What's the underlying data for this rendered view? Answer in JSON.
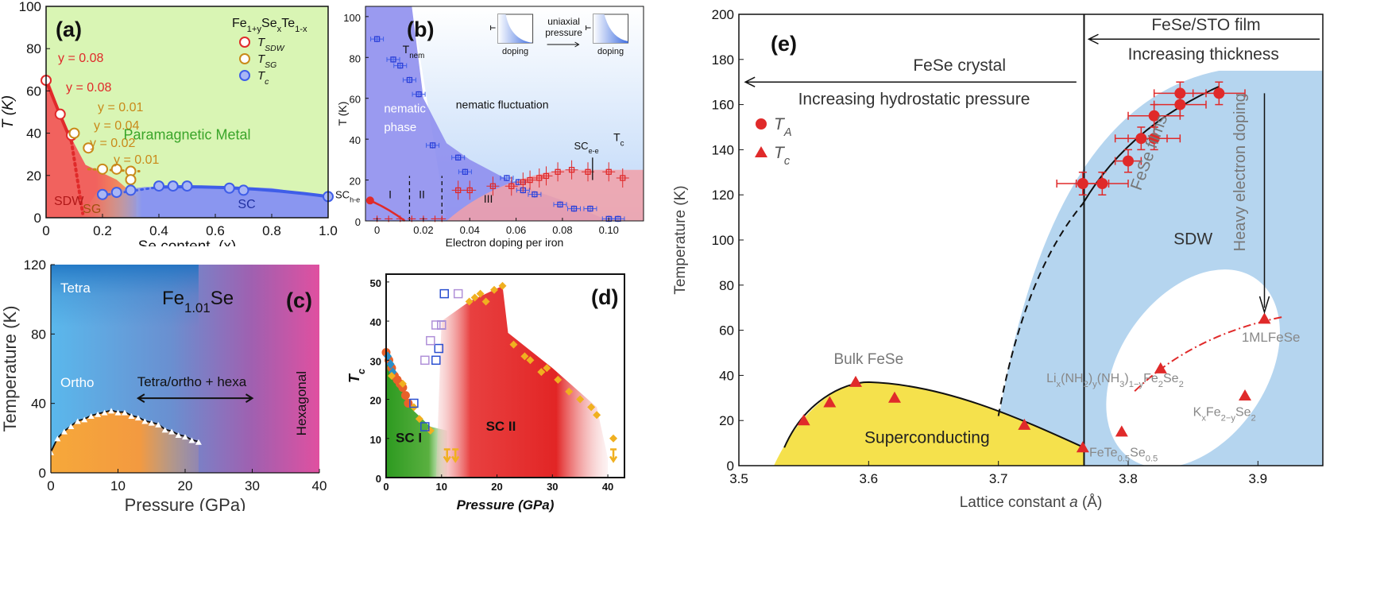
{
  "colors": {
    "sdw_a": "#f25a5a",
    "sg_a": "#f2a35a",
    "sc_a": "#8a96f0",
    "para_a": "#d9f5b4",
    "red": "#e02a2a",
    "gold": "#c98a1a",
    "blue": "#3f5ee8",
    "nem": "#8f8fee",
    "fluct": "#bcd6f8",
    "scpink": "#f2a0a8",
    "green": "#3aa52a",
    "scII": "#e22525",
    "yellow": "#f5e14c",
    "sdw_e": "#b5d5ef",
    "orange_c": "#f6a83a",
    "magenta_c": "#e050a0",
    "light_blue_c": "#5ab8ec"
  },
  "chart_data": [
    {
      "panel": "a",
      "type": "scatter",
      "label": "(a)",
      "xlabel": "Se content, (x)",
      "ylabel": "T (K)",
      "xlim": [
        0,
        1
      ],
      "ylim": [
        0,
        100
      ],
      "xticks": [
        "0",
        "0.2",
        "0.4",
        "0.6",
        "0.8",
        "1.0"
      ],
      "yticks": [
        "0",
        "20",
        "40",
        "60",
        "80",
        "100"
      ],
      "legend": {
        "title": "Fe1+ySexTe1-x",
        "title_parts": [
          "Fe",
          "1+y",
          "Se",
          "x",
          "Te",
          "1-x"
        ],
        "entries": [
          {
            "name": "TSDW",
            "base": "T",
            "sub": "SDW",
            "color": "#e02a2a"
          },
          {
            "name": "TSG",
            "base": "T",
            "sub": "SG",
            "color": "#c98a1a"
          },
          {
            "name": "Tc",
            "base": "T",
            "sub": "c",
            "color": "#3f5ee8"
          }
        ]
      },
      "regions": {
        "sdw": "SDW",
        "sg": "SG",
        "sc": "SC",
        "para": "Paramagnetic Metal"
      },
      "y_labels": [
        {
          "text": "y = 0.08",
          "color": "#e02a2a"
        },
        {
          "text": "y = 0.08",
          "color": "#e02a2a"
        },
        {
          "text": "y = 0.01",
          "color": "#c98a1a"
        },
        {
          "text": "y = 0.04",
          "color": "#c98a1a"
        },
        {
          "text": "y = 0.02",
          "color": "#c98a1a"
        },
        {
          "text": "y = 0.01",
          "color": "#c98a1a"
        }
      ],
      "series": [
        {
          "name": "T_SDW",
          "color": "#e02a2a",
          "x": [
            0,
            0.05,
            0.09
          ],
          "y": [
            65,
            49,
            39
          ]
        },
        {
          "name": "T_SG",
          "color": "#c98a1a",
          "x": [
            0.1,
            0.15,
            0.2,
            0.25,
            0.3,
            0.3
          ],
          "y": [
            40,
            33,
            23,
            23,
            22,
            18
          ]
        },
        {
          "name": "Tc",
          "color": "#3f5ee8",
          "x": [
            0.2,
            0.25,
            0.3,
            0.4,
            0.45,
            0.5,
            0.65,
            0.7,
            1.0
          ],
          "y": [
            11,
            12,
            13,
            15,
            15,
            15,
            14,
            13,
            10
          ]
        }
      ]
    },
    {
      "panel": "b",
      "type": "scatter",
      "label": "(b)",
      "xlabel": "Electron doping per iron",
      "ylabel": "T (K)",
      "xlim": [
        -0.005,
        0.115
      ],
      "ylim": [
        0,
        105
      ],
      "xticks": [
        "0",
        "0.02",
        "0.04",
        "0.06",
        "0.08",
        "0.10"
      ],
      "yticks": [
        "0",
        "20",
        "40",
        "60",
        "80",
        "100"
      ],
      "text": {
        "tnem": "T",
        "tnem_sub": "nem",
        "nematic1": "nematic",
        "nematic2": "phase",
        "fluct": "nematic fluctuation",
        "sche": "SC",
        "sche_sub": "h-e",
        "scee": "SC",
        "scee_sub": "e-e",
        "tc": "T",
        "tc_sub": "c",
        "i": "I",
        "ii": "II",
        "iii": "III",
        "uni1": "uniaxial",
        "uni2": "pressure",
        "dop1": "doping",
        "dop2": "doping"
      },
      "series": [
        {
          "name": "T_nem",
          "color": "#2b3fd8",
          "x": [
            0,
            0.007,
            0.01,
            0.014,
            0.018,
            0.024,
            0.035,
            0.038,
            0.056,
            0.061,
            0.063,
            0.068,
            0.079,
            0.085,
            0.092,
            0.1,
            0.104
          ],
          "y": [
            89,
            79,
            76,
            69,
            62,
            37,
            31,
            24,
            21,
            19,
            15,
            13,
            8,
            6,
            6,
            1,
            1
          ]
        },
        {
          "name": "Tc",
          "color": "#e02a2a",
          "x": [
            0.035,
            0.04,
            0.05,
            0.058,
            0.063,
            0.066,
            0.07,
            0.073,
            0.078,
            0.084,
            0.091,
            0.1,
            0.106
          ],
          "y": [
            15,
            15,
            17,
            17,
            19,
            20,
            21,
            22,
            24,
            25,
            24,
            24,
            21
          ]
        },
        {
          "name": "SC_he",
          "color": "#e02a2a",
          "x": [
            -0.003,
            0,
            0.005,
            0.01,
            0.015,
            0.02,
            0.025,
            0.028
          ],
          "y": [
            10,
            1,
            1,
            1,
            1,
            1,
            1,
            1
          ]
        }
      ]
    },
    {
      "panel": "c",
      "type": "line",
      "label": "(c)",
      "title_base": "Fe",
      "title_sub": "1.01",
      "title_end": "Se",
      "xlabel": "Pressure (GPa)",
      "ylabel": "Temperature (K)",
      "xlim": [
        0,
        40
      ],
      "ylim": [
        0,
        120
      ],
      "xticks": [
        "0",
        "10",
        "20",
        "30",
        "40"
      ],
      "yticks": [
        "0",
        "40",
        "80",
        "120"
      ],
      "regions": {
        "tetra": "Tetra",
        "ortho": "Ortho",
        "mixed": "Tetra/ortho + hexa",
        "hex": "Hexagonal"
      },
      "series": [
        {
          "name": "Ts",
          "color": "#111111",
          "x": [
            0,
            1,
            2,
            3,
            4,
            5,
            6,
            7,
            8,
            9,
            10,
            11,
            12,
            13,
            14,
            15,
            16,
            17,
            18,
            19,
            20,
            21,
            22
          ],
          "y": [
            12,
            20,
            24,
            27,
            30,
            31,
            33,
            34,
            35,
            36,
            35,
            35,
            33,
            32,
            30,
            29,
            28,
            25,
            24,
            22,
            21,
            19,
            18
          ]
        }
      ]
    },
    {
      "panel": "d",
      "type": "scatter",
      "label": "(d)",
      "xlabel": "Pressure (GPa)",
      "ylabel": "Tc (K)",
      "ylabel_base": "T",
      "ylabel_sub": "c",
      "xlim": [
        0,
        43
      ],
      "ylim": [
        0,
        52
      ],
      "xticks": [
        "0",
        "10",
        "20",
        "30",
        "40"
      ],
      "yticks": [
        "0",
        "10",
        "20",
        "30",
        "40",
        "50"
      ],
      "regions": {
        "sc1": "SC I",
        "sc2": "SC II"
      },
      "series": [
        {
          "name": "orange dots",
          "color": "#e8612a",
          "x": [
            0,
            0.5,
            1,
            1.5,
            2,
            2.5,
            3,
            3.5,
            4
          ],
          "y": [
            32,
            30,
            28,
            26,
            25,
            24,
            23,
            21,
            19
          ]
        },
        {
          "name": "blue diamonds",
          "color": "#2a8fc8",
          "x": [
            0.3,
            0.8,
            1.2
          ],
          "y": [
            31,
            29,
            27
          ]
        },
        {
          "name": "yellow diamonds",
          "color": "#f0b020",
          "x": [
            1,
            3,
            5,
            6,
            8,
            15,
            16,
            17,
            18,
            19.5,
            21,
            23,
            25,
            26,
            28,
            29,
            31,
            33,
            35,
            37,
            38,
            41
          ],
          "y": [
            26,
            24,
            18,
            15,
            12,
            45,
            46,
            47,
            45,
            48,
            49,
            34,
            31,
            30,
            27,
            28,
            25,
            22,
            20,
            18,
            16,
            10
          ]
        },
        {
          "name": "open blue squares",
          "color": "#2a4fd0",
          "x": [
            5,
            7,
            9,
            9.5,
            10,
            10.5,
            12
          ],
          "y": [
            19,
            13,
            30,
            33,
            39,
            47,
            57
          ]
        },
        {
          "name": "open purple squares",
          "color": "#b090d8",
          "x": [
            7,
            8,
            9,
            10,
            13
          ],
          "y": [
            30,
            35,
            39,
            39,
            47
          ]
        }
      ]
    },
    {
      "panel": "e",
      "type": "scatter",
      "label": "(e)",
      "xlabel": "Lattice constant a (Å)",
      "xlabel_parts": [
        "Lattice constant ",
        "a",
        " (Å)"
      ],
      "ylabel": "Temperature (K)",
      "xlim": [
        3.5,
        3.95
      ],
      "ylim": [
        0,
        200
      ],
      "xticks": [
        "3.5",
        "3.6",
        "3.7",
        "3.8",
        "3.9"
      ],
      "yticks": [
        "0",
        "20",
        "40",
        "60",
        "80",
        "100",
        "120",
        "140",
        "160",
        "180",
        "200"
      ],
      "legend": [
        {
          "name": "TA",
          "base": "T",
          "sub": "A",
          "marker": "circle"
        },
        {
          "name": "Tc",
          "base": "T",
          "sub": "c",
          "marker": "triangle"
        }
      ],
      "labels": {
        "fese_crystal": "FeSe crystal",
        "hydro": "Increasing hydrostatic pressure",
        "film": "FeSe/STO film",
        "thick": "Increasing thickness",
        "bulk": "Bulk FeSe",
        "supercond": "Superconducting",
        "sdw": "SDW",
        "films": "FeSe films",
        "heavy": "Heavy electron doping",
        "ml": "1MLFeSe",
        "li_parts": [
          "Li",
          "x",
          "(NH",
          "2",
          ")",
          "y",
          "(NH",
          "3",
          ")",
          "1−y",
          "Fe",
          "2",
          "Se",
          "2"
        ],
        "k_parts": [
          "K",
          "x",
          "Fe",
          "2−y",
          "Se",
          "2"
        ],
        "fete_parts": [
          "FeTe",
          "0.5",
          "Se",
          "0.5"
        ]
      },
      "series": [
        {
          "name": "TA",
          "color": "#e02a2a",
          "x": [
            3.765,
            3.78,
            3.8,
            3.81,
            3.82,
            3.82,
            3.84,
            3.84,
            3.87
          ],
          "y": [
            125,
            125,
            135,
            145,
            145,
            155,
            160,
            165,
            165
          ]
        },
        {
          "name": "Tc",
          "color": "#e02a2a",
          "x": [
            3.55,
            3.57,
            3.59,
            3.62,
            3.72,
            3.765,
            3.795,
            3.825,
            3.89,
            3.905
          ],
          "y": [
            20,
            28,
            37,
            30,
            18,
            8,
            15,
            43,
            31,
            65
          ]
        }
      ]
    }
  ]
}
